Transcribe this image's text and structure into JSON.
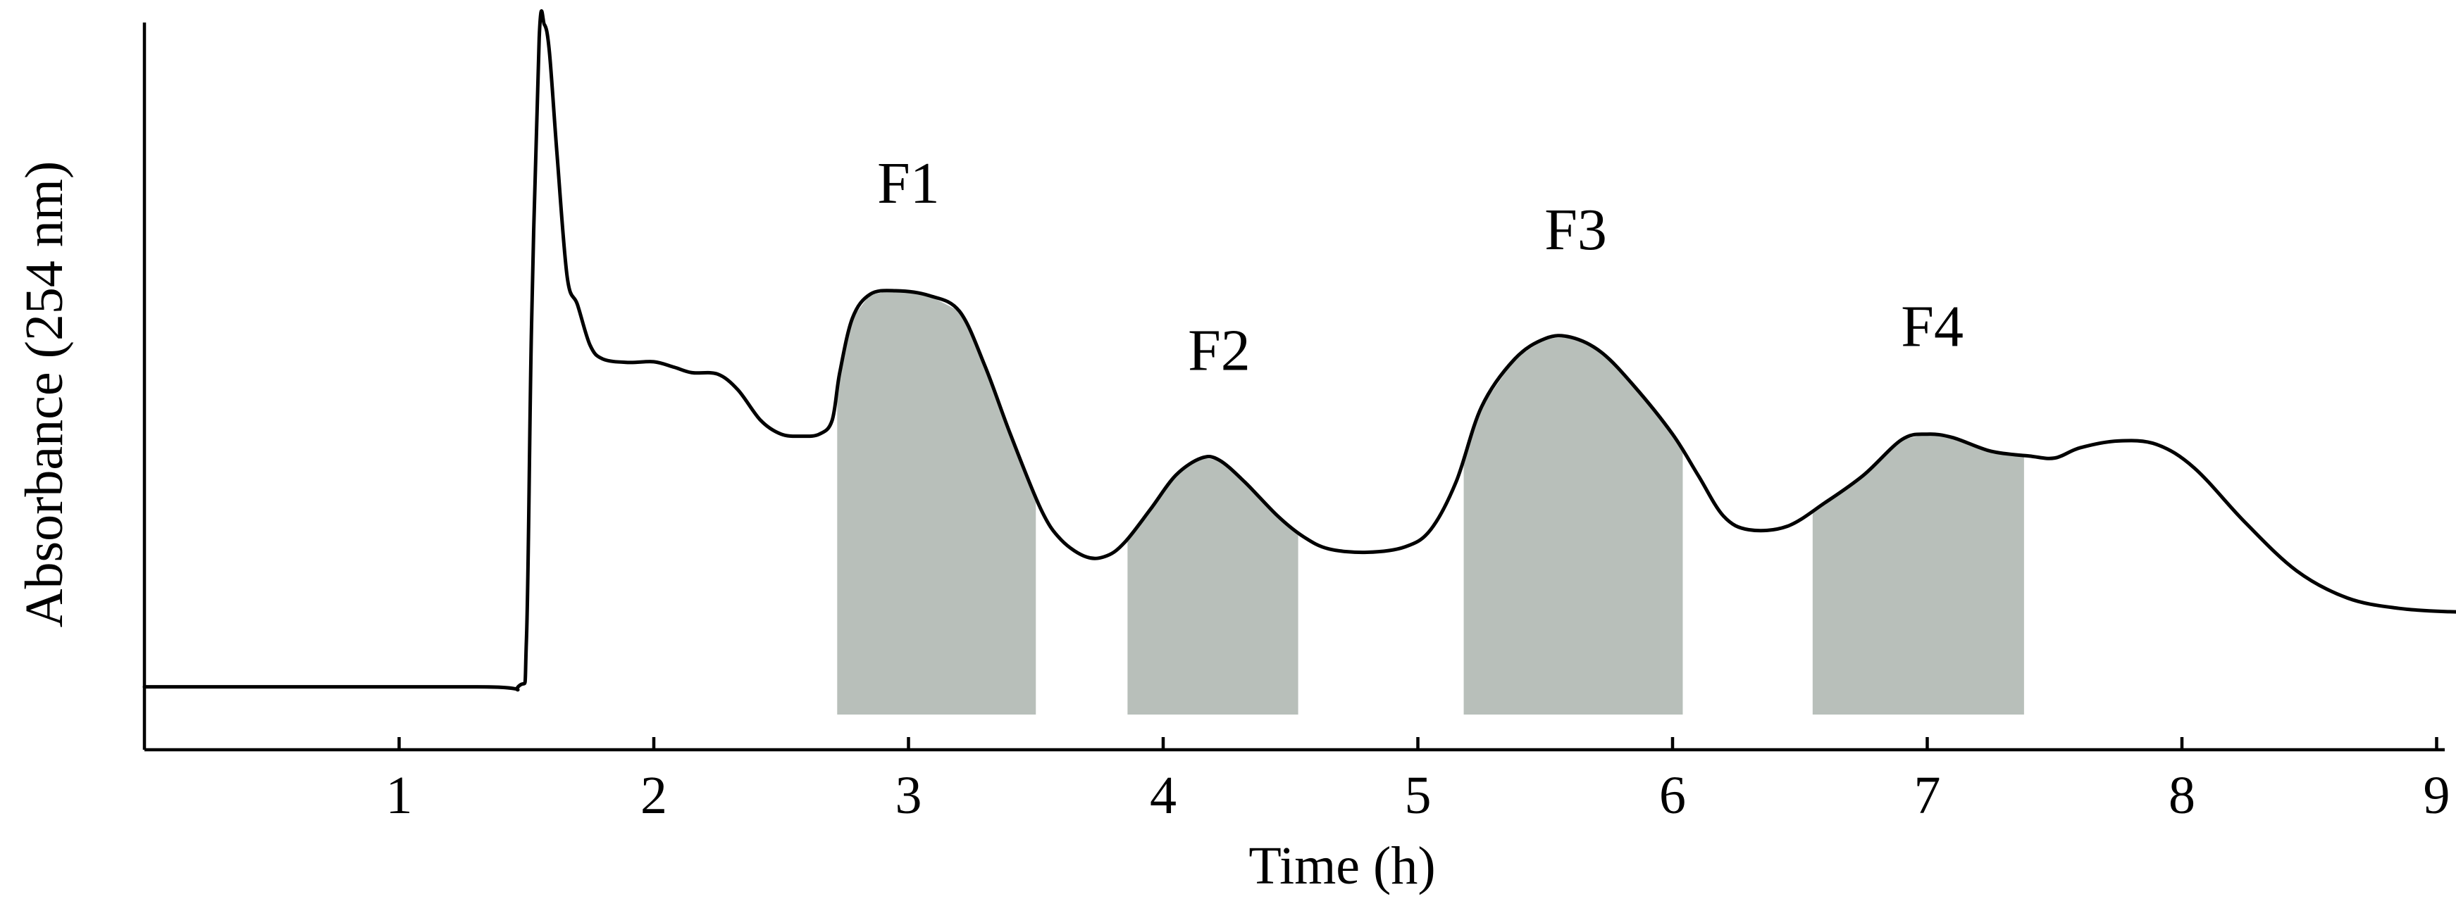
{
  "chart_data": {
    "type": "line",
    "title": "",
    "xlabel": "Time (h)",
    "ylabel": "Absorbance (254 nm)",
    "xlim": [
      0,
      9.2
    ],
    "ylim": [
      0,
      1.0
    ],
    "x_ticks": [
      1,
      2,
      3,
      4,
      5,
      6,
      7,
      8,
      9
    ],
    "x_tick_labels": [
      "1",
      "2",
      "3",
      "4",
      "5",
      "6",
      "7",
      "8",
      "9"
    ],
    "y_ticks_shown": false,
    "grid": false,
    "series": [
      {
        "points": [
          [
            0.0,
            0.02
          ],
          [
            1.3,
            0.02
          ],
          [
            1.47,
            0.021
          ],
          [
            1.5,
            0.09
          ],
          [
            1.52,
            0.55
          ],
          [
            1.55,
            0.97
          ],
          [
            1.57,
            0.99
          ],
          [
            1.59,
            0.95
          ],
          [
            1.62,
            0.8
          ],
          [
            1.66,
            0.62
          ],
          [
            1.7,
            0.58
          ],
          [
            1.75,
            0.52
          ],
          [
            1.8,
            0.5
          ],
          [
            1.9,
            0.495
          ],
          [
            2.0,
            0.496
          ],
          [
            2.08,
            0.488
          ],
          [
            2.15,
            0.48
          ],
          [
            2.25,
            0.478
          ],
          [
            2.33,
            0.455
          ],
          [
            2.42,
            0.41
          ],
          [
            2.5,
            0.39
          ],
          [
            2.58,
            0.387
          ],
          [
            2.65,
            0.39
          ],
          [
            2.7,
            0.41
          ],
          [
            2.73,
            0.48
          ],
          [
            2.78,
            0.56
          ],
          [
            2.85,
            0.595
          ],
          [
            2.95,
            0.6
          ],
          [
            3.08,
            0.593
          ],
          [
            3.2,
            0.57
          ],
          [
            3.3,
            0.49
          ],
          [
            3.4,
            0.39
          ],
          [
            3.52,
            0.28
          ],
          [
            3.6,
            0.235
          ],
          [
            3.7,
            0.21
          ],
          [
            3.78,
            0.212
          ],
          [
            3.85,
            0.232
          ],
          [
            3.95,
            0.28
          ],
          [
            4.05,
            0.33
          ],
          [
            4.15,
            0.355
          ],
          [
            4.22,
            0.352
          ],
          [
            4.32,
            0.32
          ],
          [
            4.45,
            0.27
          ],
          [
            4.55,
            0.24
          ],
          [
            4.65,
            0.222
          ],
          [
            4.8,
            0.217
          ],
          [
            4.95,
            0.225
          ],
          [
            5.05,
            0.25
          ],
          [
            5.15,
            0.32
          ],
          [
            5.25,
            0.43
          ],
          [
            5.38,
            0.5
          ],
          [
            5.5,
            0.53
          ],
          [
            5.6,
            0.532
          ],
          [
            5.72,
            0.51
          ],
          [
            5.85,
            0.46
          ],
          [
            6.0,
            0.39
          ],
          [
            6.1,
            0.33
          ],
          [
            6.2,
            0.27
          ],
          [
            6.3,
            0.25
          ],
          [
            6.45,
            0.255
          ],
          [
            6.6,
            0.29
          ],
          [
            6.75,
            0.33
          ],
          [
            6.9,
            0.382
          ],
          [
            7.0,
            0.39
          ],
          [
            7.1,
            0.385
          ],
          [
            7.25,
            0.365
          ],
          [
            7.4,
            0.358
          ],
          [
            7.5,
            0.355
          ],
          [
            7.6,
            0.37
          ],
          [
            7.75,
            0.38
          ],
          [
            7.9,
            0.375
          ],
          [
            8.05,
            0.34
          ],
          [
            8.25,
            0.26
          ],
          [
            8.45,
            0.19
          ],
          [
            8.65,
            0.15
          ],
          [
            8.85,
            0.135
          ],
          [
            9.05,
            0.13
          ],
          [
            9.2,
            0.13
          ]
        ]
      }
    ],
    "fractions": [
      {
        "label": "F1",
        "x_start": 2.72,
        "x_end": 3.5,
        "peak_x": 2.95,
        "peak_y": 0.6
      },
      {
        "label": "F2",
        "x_start": 3.86,
        "x_end": 4.53,
        "peak_x": 4.17,
        "peak_y": 0.355
      },
      {
        "label": "F3",
        "x_start": 5.18,
        "x_end": 6.04,
        "peak_x": 5.57,
        "peak_y": 0.532
      },
      {
        "label": "F4",
        "x_start": 6.55,
        "x_end": 7.38,
        "peak_x": 6.97,
        "peak_y": 0.39
      }
    ],
    "fraction_fill_color": "#b8bfba",
    "line_color": "#000000"
  }
}
